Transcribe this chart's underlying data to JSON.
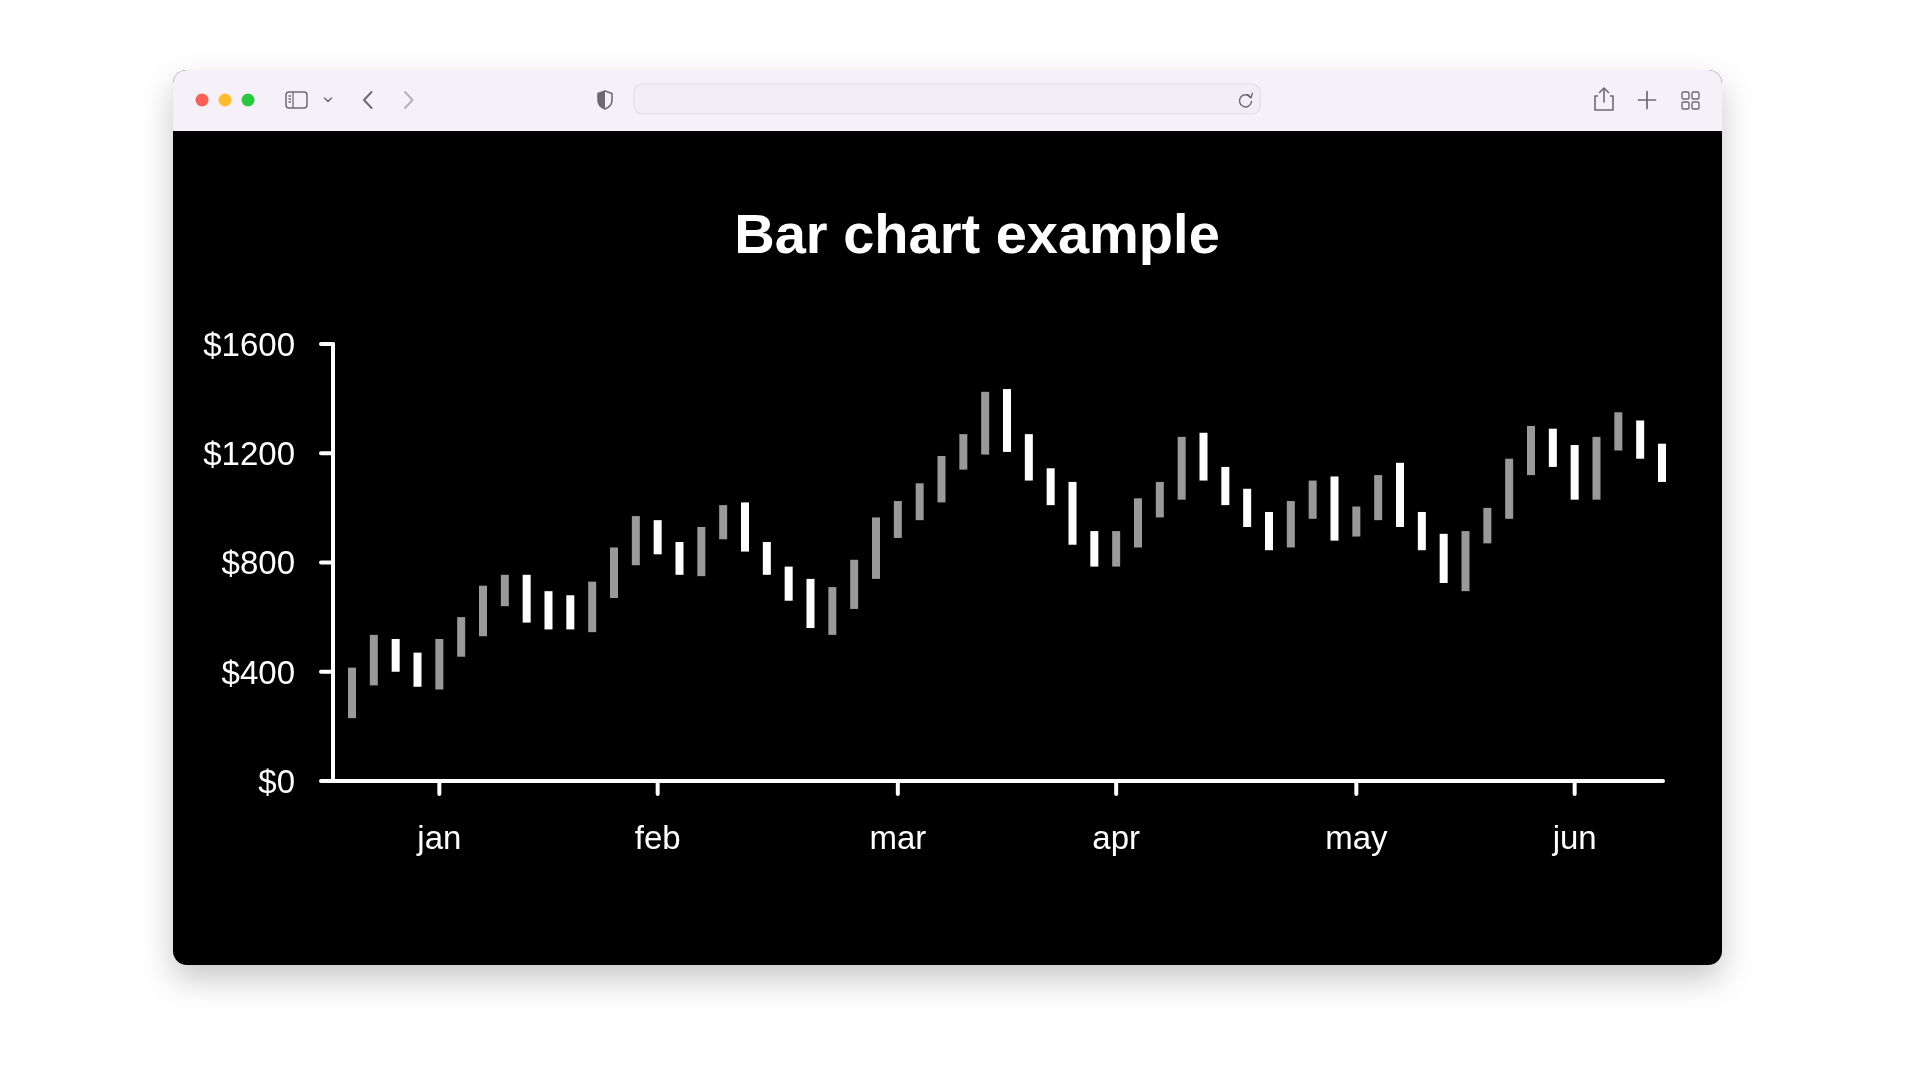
{
  "chart_data": {
    "type": "candlestick",
    "title": "Bar chart example",
    "categories": [
      null,
      null,
      null,
      null,
      "jan",
      null,
      null,
      null,
      null,
      null,
      null,
      null,
      null,
      null,
      "feb",
      null,
      null,
      null,
      null,
      null,
      null,
      null,
      null,
      null,
      null,
      "mar",
      null,
      null,
      null,
      null,
      null,
      null,
      null,
      null,
      null,
      "apr",
      null,
      null,
      null,
      null,
      null,
      null,
      null,
      null,
      null,
      null,
      "may",
      null,
      null,
      null,
      null,
      null,
      null,
      null,
      null,
      null,
      "jun",
      null,
      null,
      null,
      null
    ],
    "ohlc": [
      [
        230,
        415,
        230,
        415
      ],
      [
        350,
        535,
        350,
        535
      ],
      [
        520,
        520,
        400,
        400
      ],
      [
        470,
        470,
        345,
        345
      ],
      [
        335,
        520,
        335,
        520
      ],
      [
        455,
        600,
        455,
        600
      ],
      [
        530,
        715,
        530,
        715
      ],
      [
        640,
        755,
        640,
        755
      ],
      [
        755,
        755,
        580,
        580
      ],
      [
        695,
        695,
        555,
        555
      ],
      [
        680,
        680,
        555,
        555
      ],
      [
        545,
        730,
        545,
        730
      ],
      [
        670,
        855,
        670,
        855
      ],
      [
        790,
        970,
        790,
        970
      ],
      [
        955,
        955,
        830,
        830
      ],
      [
        875,
        875,
        755,
        755
      ],
      [
        750,
        930,
        750,
        930
      ],
      [
        885,
        1010,
        885,
        1010
      ],
      [
        1020,
        1020,
        840,
        840
      ],
      [
        875,
        875,
        755,
        755
      ],
      [
        785,
        785,
        660,
        660
      ],
      [
        740,
        740,
        560,
        560
      ],
      [
        535,
        710,
        535,
        710
      ],
      [
        630,
        810,
        630,
        810
      ],
      [
        740,
        965,
        740,
        965
      ],
      [
        890,
        1025,
        890,
        1025
      ],
      [
        955,
        1090,
        955,
        1090
      ],
      [
        1020,
        1190,
        1020,
        1190
      ],
      [
        1140,
        1270,
        1140,
        1270
      ],
      [
        1195,
        1425,
        1195,
        1425
      ],
      [
        1435,
        1435,
        1205,
        1205
      ],
      [
        1270,
        1270,
        1100,
        1100
      ],
      [
        1145,
        1145,
        1010,
        1010
      ],
      [
        1095,
        1095,
        865,
        865
      ],
      [
        915,
        915,
        785,
        785
      ],
      [
        785,
        915,
        785,
        915
      ],
      [
        855,
        1035,
        855,
        1035
      ],
      [
        965,
        1095,
        965,
        1095
      ],
      [
        1030,
        1260,
        1030,
        1260
      ],
      [
        1275,
        1275,
        1100,
        1100
      ],
      [
        1150,
        1150,
        1010,
        1010
      ],
      [
        1070,
        1070,
        930,
        930
      ],
      [
        985,
        985,
        845,
        845
      ],
      [
        855,
        1025,
        855,
        1025
      ],
      [
        960,
        1100,
        960,
        1100
      ],
      [
        1115,
        1115,
        880,
        880
      ],
      [
        895,
        1005,
        895,
        1005
      ],
      [
        955,
        1120,
        955,
        1120
      ],
      [
        1165,
        1165,
        930,
        930
      ],
      [
        985,
        985,
        845,
        845
      ],
      [
        905,
        905,
        725,
        725
      ],
      [
        695,
        915,
        695,
        915
      ],
      [
        870,
        1000,
        870,
        1000
      ],
      [
        960,
        1180,
        960,
        1180
      ],
      [
        1120,
        1300,
        1120,
        1300
      ],
      [
        1290,
        1290,
        1150,
        1150
      ],
      [
        1230,
        1230,
        1030,
        1030
      ],
      [
        1030,
        1260,
        1030,
        1260
      ],
      [
        1210,
        1350,
        1210,
        1350
      ],
      [
        1320,
        1320,
        1180,
        1180
      ],
      [
        1235,
        1235,
        1095,
        1095
      ]
    ],
    "colors": [
      "#999999",
      "#999999",
      "#ffffff",
      "#ffffff",
      "#999999",
      "#999999",
      "#999999",
      "#999999",
      "#ffffff",
      "#ffffff",
      "#ffffff",
      "#999999",
      "#999999",
      "#999999",
      "#ffffff",
      "#ffffff",
      "#999999",
      "#999999",
      "#ffffff",
      "#ffffff",
      "#ffffff",
      "#ffffff",
      "#999999",
      "#999999",
      "#999999",
      "#999999",
      "#999999",
      "#999999",
      "#999999",
      "#999999",
      "#ffffff",
      "#ffffff",
      "#ffffff",
      "#ffffff",
      "#ffffff",
      "#999999",
      "#999999",
      "#999999",
      "#999999",
      "#ffffff",
      "#ffffff",
      "#ffffff",
      "#ffffff",
      "#999999",
      "#999999",
      "#ffffff",
      "#999999",
      "#999999",
      "#ffffff",
      "#ffffff",
      "#ffffff",
      "#999999",
      "#999999",
      "#999999",
      "#999999",
      "#ffffff",
      "#ffffff",
      "#999999",
      "#999999",
      "#ffffff",
      "#ffffff"
    ],
    "ylim": [
      0,
      1600
    ],
    "yticks": [
      {
        "value": 0,
        "label": "$0"
      },
      {
        "value": 400,
        "label": "$400"
      },
      {
        "value": 800,
        "label": "$800"
      },
      {
        "value": 1200,
        "label": "$1200"
      },
      {
        "value": 1600,
        "label": "$1600"
      }
    ]
  }
}
